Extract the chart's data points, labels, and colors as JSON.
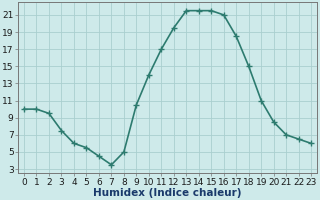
{
  "x": [
    0,
    1,
    2,
    3,
    4,
    5,
    6,
    7,
    8,
    9,
    10,
    11,
    12,
    13,
    14,
    15,
    16,
    17,
    18,
    19,
    20,
    21,
    22,
    23
  ],
  "y": [
    10,
    10,
    9.5,
    7.5,
    6,
    5.5,
    4.5,
    3.5,
    5,
    10.5,
    14,
    17,
    19.5,
    21.5,
    21.5,
    21.5,
    21,
    18.5,
    15,
    11,
    8.5,
    7,
    6.5,
    6
  ],
  "line_color": "#2d7b6f",
  "marker": "+",
  "marker_size": 4,
  "bg_color": "#ceeaea",
  "grid_color": "#aacfcf",
  "xlabel": "Humidex (Indice chaleur)",
  "xlabel_fontsize": 7.5,
  "ylabel_ticks": [
    3,
    5,
    7,
    9,
    11,
    13,
    15,
    17,
    19,
    21
  ],
  "ylim": [
    2.5,
    22.5
  ],
  "xlim": [
    -0.5,
    23.5
  ],
  "xtick_labels": [
    "0",
    "1",
    "2",
    "3",
    "4",
    "5",
    "6",
    "7",
    "8",
    "9",
    "10",
    "11",
    "12",
    "13",
    "14",
    "15",
    "16",
    "17",
    "18",
    "19",
    "20",
    "21",
    "22",
    "23"
  ],
  "tick_fontsize": 6.5,
  "line_width": 1.2
}
